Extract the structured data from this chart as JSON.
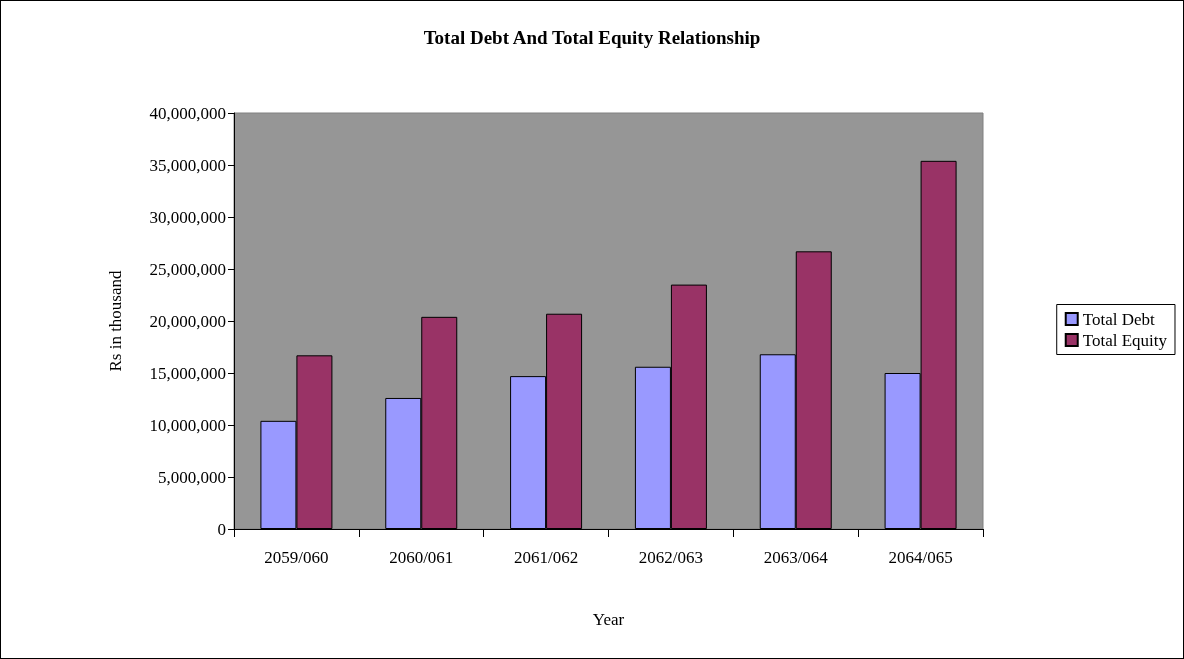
{
  "chart_data": {
    "type": "bar",
    "title": "Total Debt And Total Equity Relationship",
    "xlabel": "Year",
    "ylabel": "Rs in thousand",
    "categories": [
      "2059/060",
      "2060/061",
      "2061/062",
      "2062/063",
      "2063/064",
      "2064/065"
    ],
    "series": [
      {
        "name": "Total Debt",
        "color": "#9999ff",
        "values": [
          10400000,
          12600000,
          14700000,
          15600000,
          16800000,
          15000000
        ]
      },
      {
        "name": "Total Equity",
        "color": "#993366",
        "values": [
          16700000,
          20400000,
          20700000,
          23500000,
          26700000,
          35400000
        ]
      }
    ],
    "ylim": [
      0,
      40000000
    ],
    "yticks": [
      0,
      {
        "value": 5000000,
        "label": "5,000,000"
      },
      {
        "value": 10000000,
        "label": "10,000,000"
      },
      {
        "value": 15000000,
        "label": "15,000,000"
      },
      {
        "value": 20000000,
        "label": "20,000,000"
      },
      {
        "value": 25000000,
        "label": "25,000,000"
      },
      {
        "value": 30000000,
        "label": "30,000,000"
      },
      {
        "value": 35000000,
        "label": "35,000,000"
      },
      {
        "value": 40000000,
        "label": "40,000,000"
      }
    ],
    "grid": false,
    "legend": "right"
  }
}
